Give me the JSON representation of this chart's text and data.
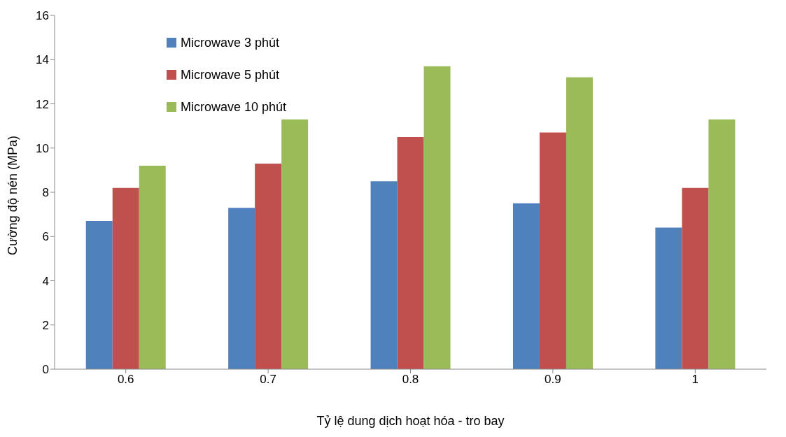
{
  "chart_data": {
    "type": "bar",
    "xlabel": "Tỷ lệ dung dịch hoạt hóa - tro bay",
    "ylabel": "Cường độ nén (MPa)",
    "categories": [
      "0.6",
      "0.7",
      "0.8",
      "0.9",
      "1"
    ],
    "series": [
      {
        "name": "Microwave 3 phút",
        "color": "#4f81bd",
        "values": [
          6.7,
          7.3,
          8.5,
          7.5,
          6.4
        ]
      },
      {
        "name": "Microwave 5 phút",
        "color": "#c0504d",
        "values": [
          8.2,
          9.3,
          10.5,
          10.7,
          8.2
        ]
      },
      {
        "name": "Microwave 10 phút",
        "color": "#9bbb59",
        "values": [
          9.2,
          11.3,
          13.7,
          13.2,
          11.3
        ]
      }
    ],
    "ylim": [
      0,
      16
    ],
    "yticks": [
      0,
      2,
      4,
      6,
      8,
      10,
      12,
      14,
      16
    ],
    "grid": false,
    "legend": "top left"
  }
}
